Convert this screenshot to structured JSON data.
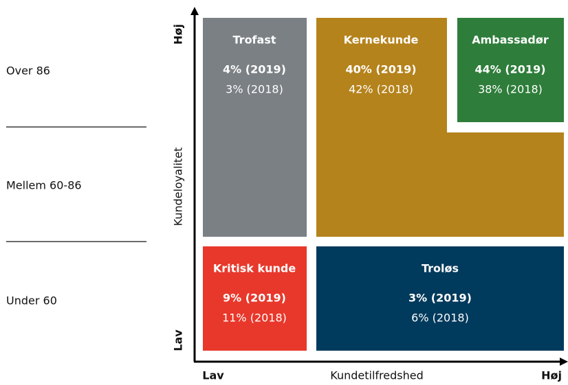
{
  "row_labels": [
    "Over 86",
    "Mellem 60-86",
    "Under 60"
  ],
  "axes": {
    "y_label": "Kundeloyalitet",
    "y_high": "Høj",
    "y_low": "Lav",
    "x_label": "Kundetilfredshed",
    "x_low": "Lav",
    "x_high": "Høj"
  },
  "segments": [
    {
      "name": "Trofast",
      "current": "4% (2019)",
      "previous": "3% (2018)"
    },
    {
      "name": "Kernekunde",
      "current": "40% (2019)",
      "previous": "42% (2018)"
    },
    {
      "name": "Ambassadør",
      "current": "44% (2019)",
      "previous": "38% (2018)"
    },
    {
      "name": "Kritisk kunde",
      "current": "9% (2019)",
      "previous": "11% (2018)"
    },
    {
      "name": "Troløs",
      "current": "3% (2019)",
      "previous": "6% (2018)"
    }
  ]
}
